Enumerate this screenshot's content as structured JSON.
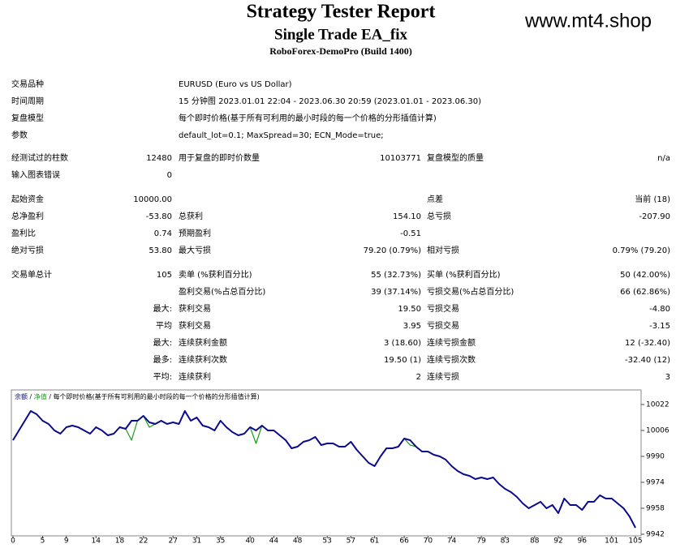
{
  "header": {
    "title": "Strategy Tester Report",
    "subtitle": "Single Trade EA_fix",
    "server": "RoboForex-DemoPro (Build 1400)",
    "watermark": "www.mt4.shop"
  },
  "report": {
    "sections": [
      [
        {
          "l1": "交易品种",
          "l2": "EURUSD (Euro vs US Dollar)"
        },
        {
          "l1": "时间周期",
          "l2": "15 分钟图 2023.01.01 22:04 - 2023.06.30 20:59 (2023.01.01 - 2023.06.30)"
        },
        {
          "l1": "复盘模型",
          "l2": "每个即时价格(基于所有可利用的最小时段的每一个价格的分形插值计算)"
        },
        {
          "l1": "参数",
          "l2": "default_lot=0.1; MaxSpread=30; ECN_Mode=true;"
        }
      ],
      [
        {
          "l1": "经测试过的柱数",
          "v1": "12480",
          "l2": "用于复盘的即时价数量",
          "v2": "10103771",
          "l3": "复盘模型的质量",
          "v3": "n/a"
        },
        {
          "l1": "输入图表错误",
          "v1": "0"
        }
      ],
      [
        {
          "l1": "起始资金",
          "v1": "10000.00",
          "l3": "点差",
          "v3": "当前 (18)"
        },
        {
          "l1": "总净盈利",
          "v1": "-53.80",
          "l2": "总获利",
          "v2": "154.10",
          "l3": "总亏损",
          "v3": "-207.90"
        },
        {
          "l1": "盈利比",
          "v1": "0.74",
          "l2": "预期盈利",
          "v2": "-0.51"
        },
        {
          "l1": "绝对亏损",
          "v1": "53.80",
          "l2": "最大亏损",
          "v2": "79.20 (0.79%)",
          "l3": "相对亏损",
          "v3": "0.79% (79.20)"
        }
      ],
      [
        {
          "l1": "交易单总计",
          "v1": "105",
          "l2": "卖单 (%获利百分比)",
          "v2": "55 (32.73%)",
          "l3": "买单 (%获利百分比)",
          "v3": "50 (42.00%)"
        },
        {
          "l2": "盈利交易(%占总百分比)",
          "v2": "39 (37.14%)",
          "l3": "亏损交易(%占总百分比)",
          "v3": "66 (62.86%)"
        },
        {
          "v1": "最大:",
          "l2": "获利交易",
          "v2": "19.50",
          "l3": "亏损交易",
          "v3": "-4.80"
        },
        {
          "v1": "平均",
          "l2": "获利交易",
          "v2": "3.95",
          "l3": "亏损交易",
          "v3": "-3.15"
        },
        {
          "v1": "最大:",
          "l2": "连续获利金额",
          "v2": "3 (18.60)",
          "l3": "连续亏损金额",
          "v3": "12 (-32.40)"
        },
        {
          "v1": "最多:",
          "l2": "连续获利次数",
          "v2": "19.50 (1)",
          "l3": "连续亏损次数",
          "v3": "-32.40 (12)"
        },
        {
          "v1": "平均:",
          "l2": "连续获利",
          "v2": "2",
          "l3": "连续亏损",
          "v3": "3"
        }
      ]
    ]
  },
  "chart_data": {
    "type": "line",
    "legend_text": "每个即时价格(基于所有可利用的最小时段的每一个价格的分形插值计算)",
    "xlim": [
      0,
      105
    ],
    "ylim": [
      9941,
      10031
    ],
    "xticks": [
      0,
      5,
      9,
      14,
      18,
      22,
      27,
      31,
      35,
      40,
      44,
      48,
      53,
      57,
      61,
      66,
      70,
      74,
      79,
      83,
      88,
      92,
      96,
      101,
      105
    ],
    "yticks": [
      10022,
      10006,
      9990,
      9974,
      9958,
      9942
    ],
    "series": [
      {
        "name": "净值",
        "color": "#1a9a1a",
        "values": [
          10000,
          10006,
          10012,
          10018,
          10016,
          10012,
          10010,
          10006,
          10004,
          10008,
          10009,
          10008,
          10006,
          10004,
          10008,
          10006,
          10003,
          10004,
          10008,
          10007,
          10000,
          10012,
          10015,
          10008,
          10010,
          10012,
          10010,
          10011,
          10010,
          10018,
          10012,
          10014,
          10009,
          10008,
          10006,
          10012,
          10008,
          10005,
          10003,
          10004,
          10008,
          9998,
          10009,
          10006,
          10006,
          10003,
          10000,
          9995,
          9996,
          9999,
          10000,
          10002,
          9997,
          9998,
          9998,
          9996,
          9996,
          9999,
          9994,
          9990,
          9986,
          9984,
          9990,
          9995,
          9995,
          9996,
          10001,
          9997,
          9996,
          9993,
          9993,
          9991,
          9990,
          9988,
          9984,
          9981,
          9979,
          9978,
          9976,
          9977,
          9976,
          9977,
          9973,
          9970,
          9968,
          9965,
          9961,
          9958,
          9960,
          9962,
          9958,
          9960,
          9955,
          9964,
          9960,
          9960,
          9957,
          9962,
          9962,
          9966,
          9964,
          9964,
          9961,
          9958,
          9953,
          9946
        ]
      },
      {
        "name": "余额",
        "color": "#0a0a8c",
        "values": [
          10000,
          10006,
          10012,
          10018,
          10016,
          10012,
          10010,
          10006,
          10004,
          10008,
          10009,
          10008,
          10006,
          10004,
          10008,
          10006,
          10003,
          10004,
          10008,
          10007,
          10012,
          10012,
          10015,
          10011,
          10010,
          10012,
          10010,
          10011,
          10010,
          10018,
          10012,
          10014,
          10009,
          10008,
          10006,
          10012,
          10008,
          10005,
          10003,
          10004,
          10008,
          10006,
          10009,
          10006,
          10006,
          10003,
          10000,
          9995,
          9996,
          9999,
          10000,
          10002,
          9997,
          9998,
          9998,
          9996,
          9996,
          9999,
          9994,
          9990,
          9986,
          9984,
          9990,
          9995,
          9995,
          9996,
          10001,
          10000,
          9996,
          9993,
          9993,
          9991,
          9990,
          9988,
          9984,
          9981,
          9979,
          9978,
          9976,
          9977,
          9976,
          9977,
          9973,
          9970,
          9968,
          9965,
          9961,
          9958,
          9960,
          9962,
          9958,
          9960,
          9955,
          9964,
          9960,
          9960,
          9957,
          9962,
          9962,
          9966,
          9964,
          9964,
          9961,
          9958,
          9953,
          9946
        ]
      }
    ]
  }
}
